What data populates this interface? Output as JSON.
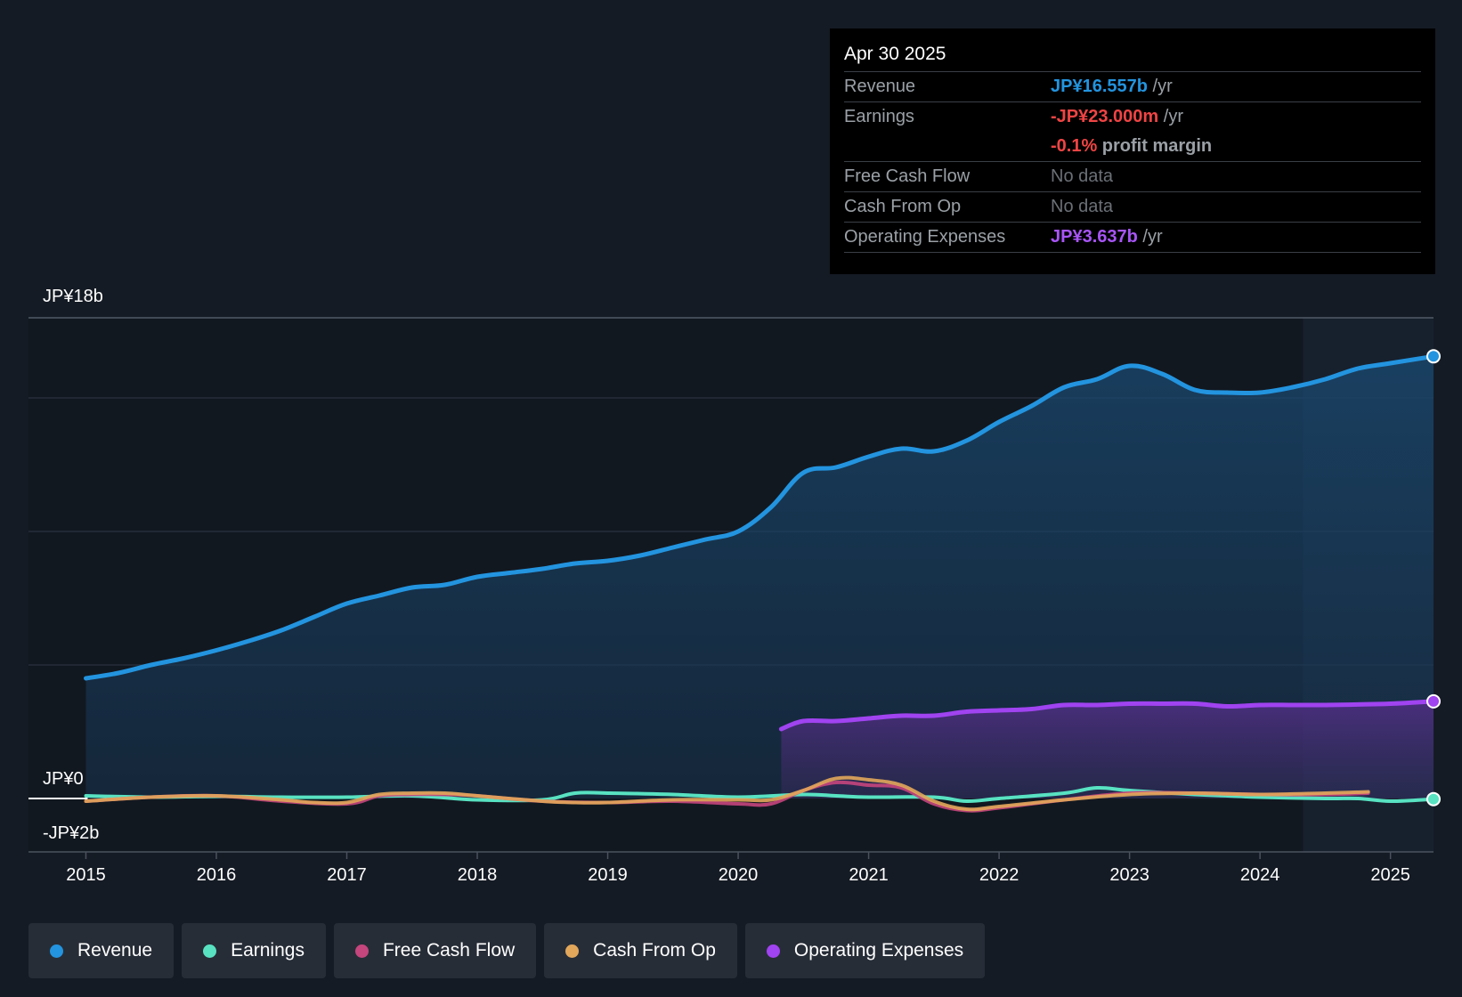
{
  "colors": {
    "revenue": "#2394df",
    "earnings": "#58e2c2",
    "fcf": "#c5457d",
    "cfo": "#e2a75a",
    "opex": "#a043f0",
    "grid": "#2b3340",
    "axis": "#4a525e"
  },
  "tooltip": {
    "date": "Apr 30 2025",
    "rows": [
      {
        "key": "Revenue",
        "value": "JP¥16.557b",
        "unit": " /yr"
      },
      {
        "key": "Earnings",
        "value": "-JP¥23.000m",
        "unit": " /yr"
      },
      {
        "key": "",
        "value": "-0.1%",
        "unit": " profit margin"
      },
      {
        "key": "Free Cash Flow",
        "value": "No data",
        "unit": ""
      },
      {
        "key": "Cash From Op",
        "value": "No data",
        "unit": ""
      },
      {
        "key": "Operating Expenses",
        "value": "JP¥3.637b",
        "unit": " /yr"
      }
    ]
  },
  "legend": [
    {
      "label": "Revenue",
      "color": "#2394df"
    },
    {
      "label": "Earnings",
      "color": "#58e2c2"
    },
    {
      "label": "Free Cash Flow",
      "color": "#c5457d"
    },
    {
      "label": "Cash From Op",
      "color": "#e2a75a"
    },
    {
      "label": "Operating Expenses",
      "color": "#a043f0"
    }
  ],
  "chart_data": {
    "type": "line",
    "title": "",
    "xlabel": "",
    "ylabel": "",
    "ylim": [
      -2,
      18
    ],
    "y_labels": [
      "JP¥18b",
      "JP¥0",
      "-JP¥2b"
    ],
    "y_label_values": [
      18,
      0,
      -2
    ],
    "gridlines": [
      18,
      15,
      10,
      5
    ],
    "x_ticks": [
      "2015",
      "2016",
      "2017",
      "2018",
      "2019",
      "2020",
      "2021",
      "2022",
      "2023",
      "2024",
      "2025"
    ],
    "x_tick_values": [
      2015,
      2016,
      2017,
      2018,
      2019,
      2020,
      2021,
      2022,
      2023,
      2024,
      2025
    ],
    "xlim": [
      2014.56,
      2025.33
    ],
    "forecast_start": 2024.33,
    "series": [
      {
        "name": "Revenue",
        "key": "revenue",
        "fill": true,
        "end_marker": true,
        "x": [
          2015.0,
          2015.25,
          2015.5,
          2015.75,
          2016.0,
          2016.25,
          2016.5,
          2016.75,
          2017.0,
          2017.25,
          2017.5,
          2017.75,
          2018.0,
          2018.25,
          2018.5,
          2018.75,
          2019.0,
          2019.25,
          2019.5,
          2019.75,
          2020.0,
          2020.25,
          2020.5,
          2020.75,
          2021.0,
          2021.25,
          2021.5,
          2021.75,
          2022.0,
          2022.25,
          2022.5,
          2022.75,
          2023.0,
          2023.25,
          2023.5,
          2023.75,
          2024.0,
          2024.25,
          2024.5,
          2024.75,
          2025.0,
          2025.33
        ],
        "values": [
          4.5,
          4.7,
          5.0,
          5.25,
          5.55,
          5.9,
          6.3,
          6.8,
          7.3,
          7.6,
          7.9,
          8.0,
          8.3,
          8.45,
          8.6,
          8.8,
          8.9,
          9.1,
          9.4,
          9.7,
          10.0,
          10.9,
          12.2,
          12.4,
          12.8,
          13.1,
          13.0,
          13.4,
          14.1,
          14.7,
          15.4,
          15.7,
          16.2,
          15.9,
          15.3,
          15.2,
          15.2,
          15.4,
          15.7,
          16.1,
          16.3,
          16.557
        ]
      },
      {
        "name": "Operating Expenses",
        "key": "opex",
        "fill": true,
        "end_marker": true,
        "x": [
          2020.33,
          2020.5,
          2020.75,
          2021.0,
          2021.25,
          2021.5,
          2021.75,
          2022.0,
          2022.25,
          2022.5,
          2022.75,
          2023.0,
          2023.25,
          2023.5,
          2023.75,
          2024.0,
          2024.25,
          2024.5,
          2024.75,
          2025.0,
          2025.33
        ],
        "values": [
          2.6,
          2.9,
          2.9,
          3.0,
          3.1,
          3.1,
          3.25,
          3.3,
          3.35,
          3.5,
          3.5,
          3.55,
          3.55,
          3.55,
          3.45,
          3.5,
          3.5,
          3.5,
          3.52,
          3.55,
          3.637
        ]
      },
      {
        "name": "Earnings",
        "key": "earnings",
        "fill": false,
        "end_marker": true,
        "x": [
          2015.0,
          2015.5,
          2016.0,
          2016.5,
          2017.0,
          2017.5,
          2018.0,
          2018.5,
          2018.75,
          2019.0,
          2019.5,
          2020.0,
          2020.5,
          2020.75,
          2021.0,
          2021.5,
          2021.75,
          2022.0,
          2022.5,
          2022.75,
          2023.0,
          2023.5,
          2023.75,
          2024.0,
          2024.5,
          2024.75,
          2025.0,
          2025.33
        ],
        "values": [
          0.1,
          0.05,
          0.08,
          0.05,
          0.05,
          0.1,
          -0.05,
          -0.05,
          0.2,
          0.2,
          0.15,
          0.05,
          0.15,
          0.1,
          0.05,
          0.05,
          -0.1,
          0.0,
          0.2,
          0.4,
          0.3,
          0.15,
          0.1,
          0.05,
          0.0,
          0.0,
          -0.1,
          -0.023
        ]
      },
      {
        "name": "Free Cash Flow",
        "key": "fcf",
        "fill": false,
        "end_marker": false,
        "x": [
          2015.0,
          2015.5,
          2016.0,
          2016.5,
          2017.0,
          2017.25,
          2017.5,
          2017.75,
          2018.0,
          2018.5,
          2019.0,
          2019.5,
          2020.0,
          2020.25,
          2020.5,
          2020.75,
          2021.0,
          2021.25,
          2021.5,
          2021.75,
          2022.0,
          2022.5,
          2023.0,
          2023.5,
          2024.0,
          2024.5,
          2024.83
        ],
        "values": [
          -0.1,
          0.05,
          0.1,
          -0.1,
          -0.2,
          0.1,
          0.15,
          0.15,
          0.1,
          -0.1,
          -0.15,
          -0.1,
          -0.2,
          -0.2,
          0.3,
          0.6,
          0.5,
          0.4,
          -0.2,
          -0.45,
          -0.35,
          -0.05,
          0.2,
          0.2,
          0.15,
          0.15,
          0.2
        ]
      },
      {
        "name": "Cash From Op",
        "key": "cfo",
        "fill": false,
        "end_marker": false,
        "x": [
          2015.0,
          2015.5,
          2016.0,
          2016.5,
          2016.75,
          2017.0,
          2017.25,
          2017.5,
          2017.75,
          2018.0,
          2018.5,
          2018.75,
          2019.0,
          2019.5,
          2020.0,
          2020.25,
          2020.5,
          2020.75,
          2021.0,
          2021.25,
          2021.5,
          2021.75,
          2022.0,
          2022.5,
          2023.0,
          2023.5,
          2024.0,
          2024.5,
          2024.83
        ],
        "values": [
          -0.1,
          0.05,
          0.1,
          -0.05,
          -0.15,
          -0.15,
          0.15,
          0.2,
          0.2,
          0.1,
          -0.1,
          -0.15,
          -0.15,
          -0.05,
          -0.05,
          -0.05,
          0.3,
          0.75,
          0.7,
          0.5,
          -0.1,
          -0.4,
          -0.3,
          -0.05,
          0.15,
          0.2,
          0.15,
          0.2,
          0.25
        ]
      }
    ]
  }
}
